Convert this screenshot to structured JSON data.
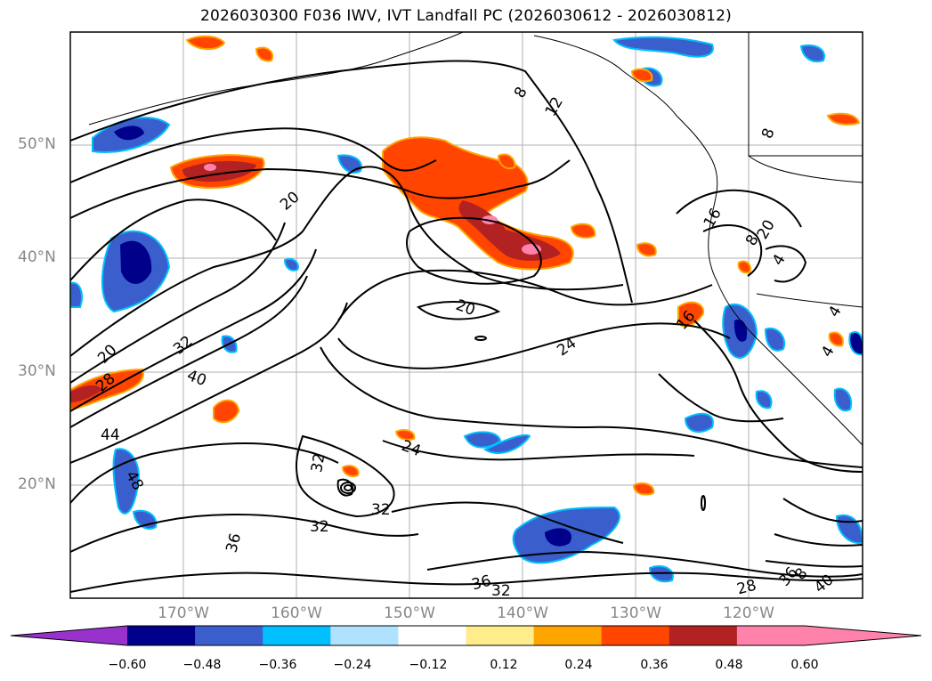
{
  "title": "2026030300 F036 IWV, IVT Landfall PC (2026030612 - 2026030812)",
  "map": {
    "projection": "cylindrical",
    "lon_range": [
      -180,
      -110
    ],
    "lat_range": [
      10,
      60
    ],
    "grid": true,
    "lat_labels": [
      "50°N",
      "40°N",
      "30°N",
      "20°N"
    ],
    "lon_labels": [
      "170°W",
      "160°W",
      "150°W",
      "140°W",
      "130°W",
      "120°W"
    ],
    "contour_labels": [
      "8",
      "12",
      "8",
      "16",
      "20",
      "20",
      "20",
      "16",
      "24",
      "32",
      "40",
      "20",
      "28",
      "44",
      "48",
      "24",
      "32",
      "32",
      "32",
      "36",
      "36",
      "32",
      "28",
      "36",
      "40",
      "8",
      "8",
      "4",
      "4",
      "4"
    ]
  },
  "colorbar": {
    "ticks": [
      "−0.60",
      "−0.48",
      "−0.36",
      "−0.24",
      "−0.12",
      "0.12",
      "0.24",
      "0.36",
      "0.48",
      "0.60"
    ],
    "colors": {
      "under": "#9932cc",
      "bins": [
        "#00008b",
        "#3a5fcd",
        "#00bfff",
        "#b0e2ff",
        "#ffffff",
        "#ffec8b",
        "#ffa500",
        "#ff4500",
        "#b22222",
        "#ff82ab"
      ],
      "over": "#ff82ab"
    }
  }
}
